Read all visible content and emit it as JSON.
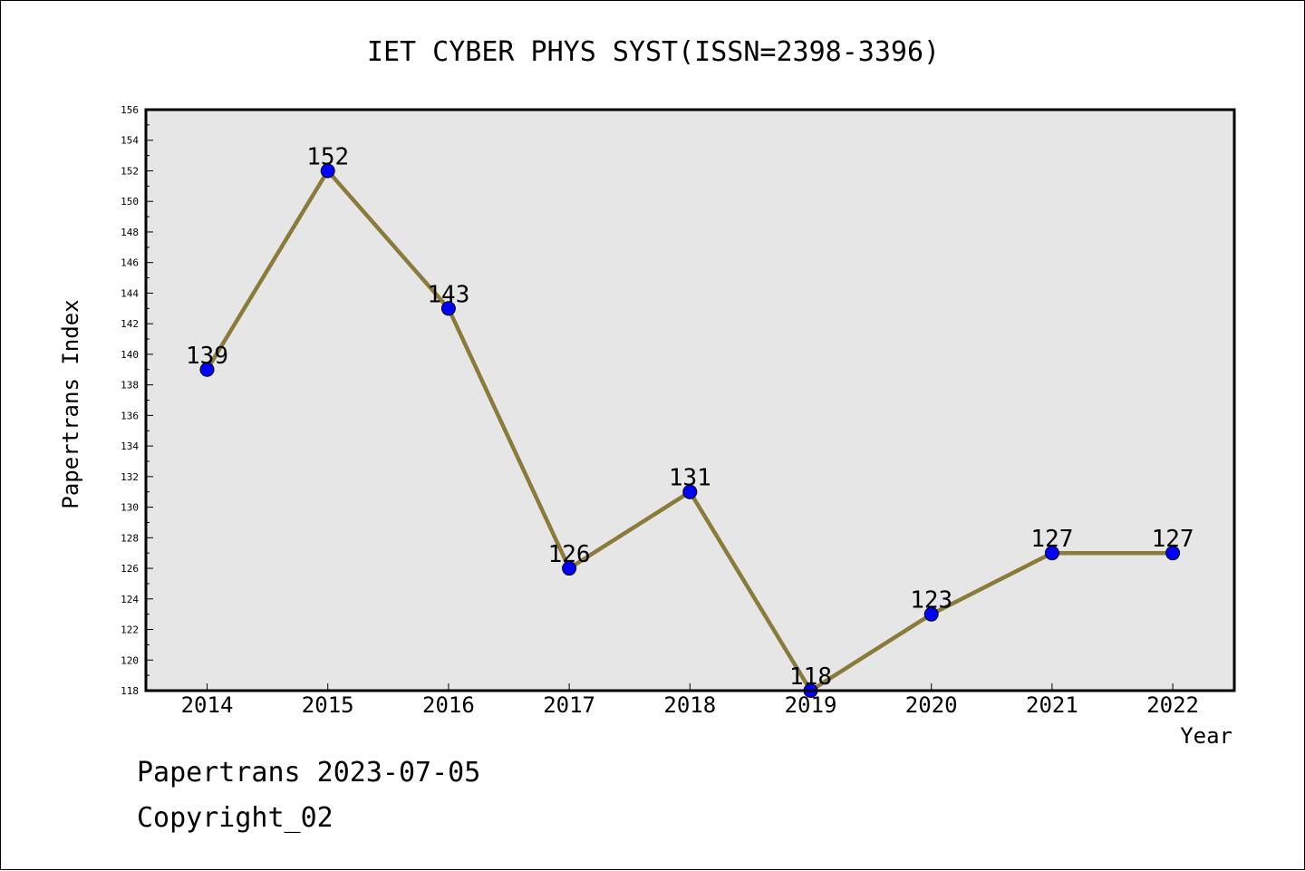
{
  "chart_data": {
    "type": "line",
    "title": "IET CYBER PHYS SYST(ISSN=2398-3396)",
    "xlabel": "Year",
    "ylabel": "Papertrans Index",
    "categories": [
      "2014",
      "2015",
      "2016",
      "2017",
      "2018",
      "2019",
      "2020",
      "2021",
      "2022"
    ],
    "series": [
      {
        "values": [
          139,
          152,
          143,
          126,
          131,
          118,
          123,
          127,
          127
        ]
      }
    ],
    "ylim": [
      118,
      156
    ],
    "yticks": [
      "118",
      "120",
      "122",
      "124",
      "126",
      "128",
      "130",
      "132",
      "134",
      "136",
      "138",
      "140",
      "142",
      "144",
      "146",
      "148",
      "150",
      "152",
      "154",
      "156"
    ],
    "grid": false,
    "legend": "none",
    "colors": {
      "line": "#8b7b3a",
      "marker": "#0000ff",
      "plot_background": "#e6e6e6",
      "axes": "#000000"
    }
  },
  "footer": {
    "line1": "Papertrans 2023-07-05",
    "line2": "Copyright_02"
  }
}
